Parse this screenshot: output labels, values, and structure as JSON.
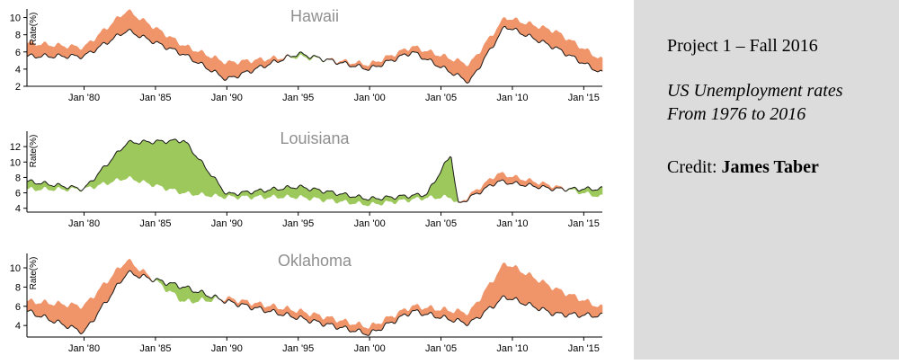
{
  "chart_data": [
    {
      "type": "area",
      "title": "Hawaii",
      "ylabel": "Rate(%)",
      "ylim": [
        2,
        11
      ],
      "yticks": [
        2,
        4,
        6,
        8,
        10
      ],
      "xlim": [
        1976,
        2016.3
      ],
      "xticks": [
        "Jan '80",
        "Jan '85",
        "Jan '90",
        "Jan '95",
        "Jan '00",
        "Jan '05",
        "Jan '10",
        "Jan '15"
      ],
      "series": [
        {
          "values_x": [
            1976,
            1980,
            1983,
            1987,
            1990,
            1995,
            2000,
            2003,
            2007,
            2009.5,
            2013,
            2016.3
          ],
          "values": [
            5.5,
            5.5,
            8.5,
            5.7,
            2.8,
            5.8,
            4.0,
            6.0,
            2.5,
            9.0,
            6.5,
            3.5
          ]
        },
        {
          "values_x": [
            1976,
            1980,
            1983,
            1987,
            1990,
            1995,
            2000,
            2003,
            2007,
            2009.5,
            2013,
            2016.3
          ],
          "values": [
            7.0,
            6.5,
            10.8,
            6.7,
            4.7,
            5.5,
            4.5,
            6.6,
            4.5,
            10.0,
            8.4,
            5.0
          ]
        }
      ],
      "colors": {
        "higher": "#f0956b",
        "lower": "#9dc85c",
        "line": "#1a1a1a"
      }
    },
    {
      "type": "area",
      "title": "Louisiana",
      "ylabel": "Rate(%)",
      "ylim": [
        3.5,
        14
      ],
      "yticks": [
        4,
        6,
        8,
        10,
        12
      ],
      "xlim": [
        1976,
        2016.3
      ],
      "xticks": [
        "Jan '80",
        "Jan '85",
        "Jan '90",
        "Jan '95",
        "Jan '00",
        "Jan '05",
        "Jan '10",
        "Jan '15"
      ],
      "series": [
        {
          "values_x": [
            1976,
            1980,
            1983,
            1987,
            1990,
            1995,
            2000,
            2004,
            2005.7,
            2006.2,
            2009,
            2013,
            2016.3
          ],
          "values": [
            7.5,
            6.5,
            12.5,
            12.8,
            5.8,
            6.8,
            5.2,
            5.8,
            11.0,
            4.5,
            7.5,
            6.5,
            6.5
          ]
        },
        {
          "values_x": [
            1976,
            1980,
            1983,
            1987,
            1990,
            1995,
            2000,
            2004,
            2005.7,
            2006.2,
            2009,
            2013,
            2016.3
          ],
          "values": [
            6.5,
            6.5,
            8.0,
            6.0,
            5.5,
            5.5,
            4.5,
            5.4,
            5.5,
            4.5,
            8.5,
            6.8,
            5.5
          ]
        }
      ],
      "colors": {
        "higher": "#f0956b",
        "lower": "#9dc85c",
        "line": "#1a1a1a"
      }
    },
    {
      "type": "area",
      "title": "Oklahoma",
      "ylabel": "Rate(%)",
      "ylim": [
        2.8,
        11.5
      ],
      "yticks": [
        4,
        6,
        8,
        10
      ],
      "xlim": [
        1976,
        2016.3
      ],
      "xticks": [
        "Jan '80",
        "Jan '85",
        "Jan '90",
        "Jan '95",
        "Jan '00",
        "Jan '05",
        "Jan '10",
        "Jan '15"
      ],
      "series": [
        {
          "values_x": [
            1976,
            1980,
            1983,
            1987,
            1990,
            1995,
            2000,
            2003,
            2007,
            2009.5,
            2013,
            2016.3
          ],
          "values": [
            5.5,
            3.3,
            9.5,
            8.0,
            6.5,
            4.8,
            3.1,
            5.5,
            4.2,
            7.0,
            5.2,
            5.0
          ]
        },
        {
          "values_x": [
            1976,
            1980,
            1983,
            1987,
            1990,
            1995,
            2000,
            2003,
            2007,
            2009.5,
            2013,
            2016.3
          ],
          "values": [
            6.5,
            6.0,
            10.8,
            6.5,
            6.8,
            5.5,
            3.8,
            6.0,
            5.3,
            10.5,
            7.8,
            5.8
          ]
        }
      ],
      "colors": {
        "higher": "#f0956b",
        "lower": "#9dc85c",
        "line": "#1a1a1a"
      }
    }
  ],
  "panel": {
    "line1": "Project 1 – Fall 2016",
    "line2": "US Unemployment rates",
    "line3": "From 1976 to 2016",
    "credit_label": "Credit:",
    "credit_name": "James Taber"
  }
}
